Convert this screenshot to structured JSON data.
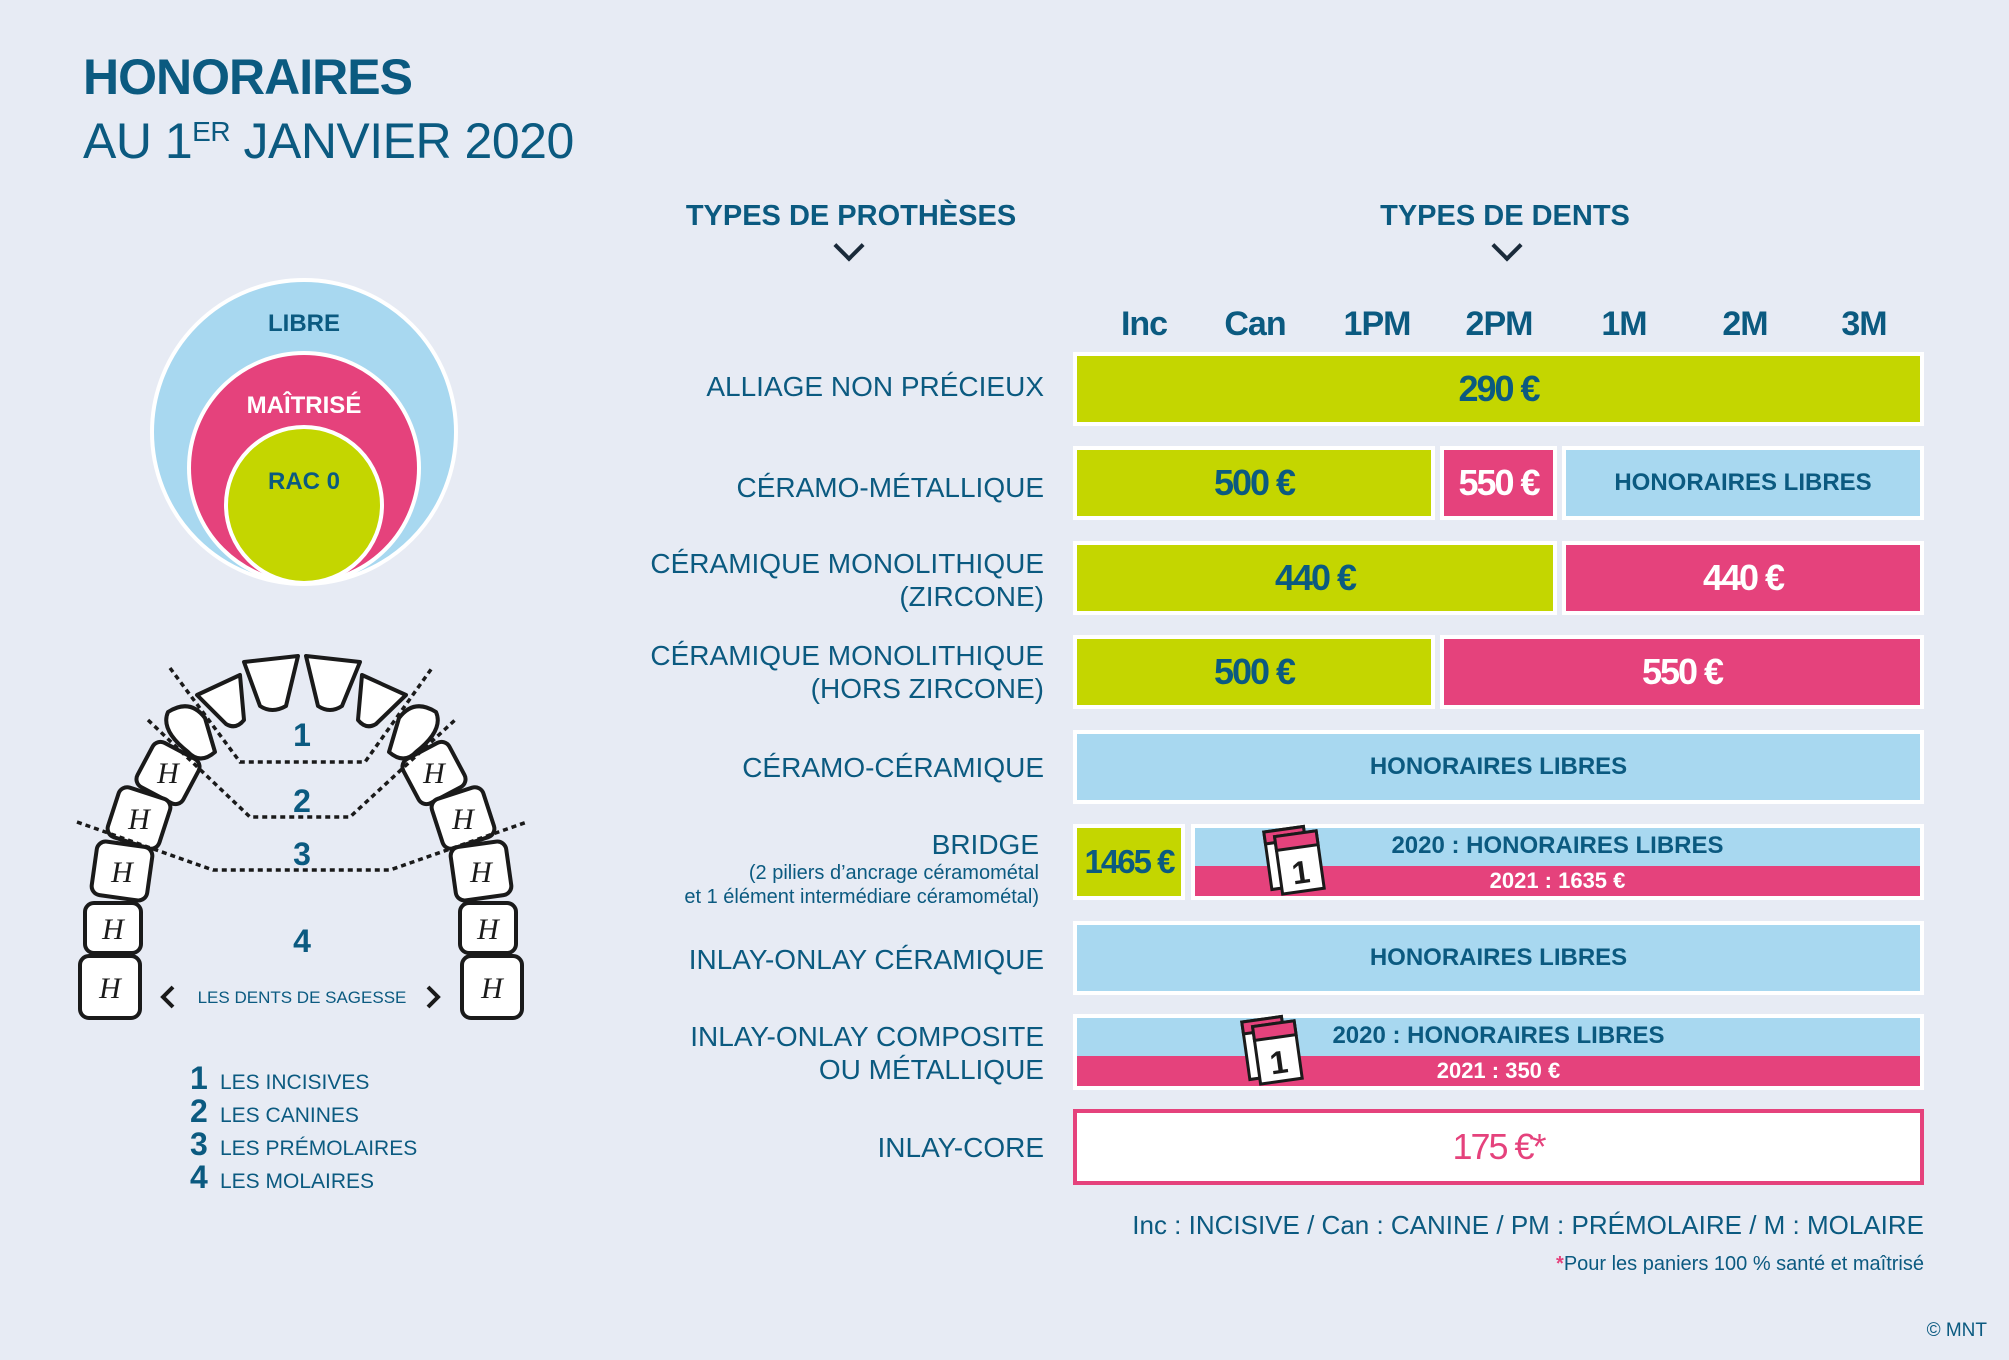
{
  "title": {
    "line1": "HONORAIRES",
    "line2_pre": "AU 1",
    "line2_sup": "ER",
    "line2_post": " JANVIER 2020"
  },
  "headers": {
    "protheses": "TYPES DE PROTHÈSES",
    "dents": "TYPES DE DENTS"
  },
  "columns": [
    "Inc",
    "Can",
    "1PM",
    "2PM",
    "1M",
    "2M",
    "3M"
  ],
  "circles": {
    "outer": "LIBRE",
    "middle": "MAÎTRISÉ",
    "inner": "RAC 0"
  },
  "colors": {
    "green": "#c4d600",
    "pink": "#e5427c",
    "blue": "#a8d8f0",
    "text": "#0b5a80",
    "background": "#e7ebf4"
  },
  "rows": [
    {
      "label": "ALLIAGE NON PRÉCIEUX",
      "cells": [
        "290 €"
      ]
    },
    {
      "label": "CÉRAMO-MÉTALLIQUE",
      "cells": [
        "500 €",
        "550 €",
        "HONORAIRES LIBRES"
      ]
    },
    {
      "label": "CÉRAMIQUE MONOLITHIQUE",
      "label2": "(ZIRCONE)",
      "cells": [
        "440 €",
        "440 €"
      ]
    },
    {
      "label": "CÉRAMIQUE MONOLITHIQUE",
      "label2": "(HORS ZIRCONE)",
      "cells": [
        "500 €",
        "550 €"
      ]
    },
    {
      "label": "CÉRAMO-CÉRAMIQUE",
      "cells": [
        "HONORAIRES LIBRES"
      ]
    },
    {
      "label": "BRIDGE",
      "sub1": "(2 piliers d’ancrage céramométal",
      "sub2": "et 1 élément intermédiare céramométal)",
      "cells": [
        "1465 €"
      ],
      "y2020": "2020 : HONORAIRES LIBRES",
      "y2021": "2021 : 1635 €",
      "calendar_number": "1"
    },
    {
      "label": "INLAY-ONLAY CÉRAMIQUE",
      "cells": [
        "HONORAIRES LIBRES"
      ]
    },
    {
      "label": "INLAY-ONLAY COMPOSITE",
      "label2": "OU MÉTALLIQUE",
      "y2020": "2020 : HONORAIRES LIBRES",
      "y2021": "2021 : 350 €",
      "calendar_number": "1"
    },
    {
      "label": "INLAY-CORE",
      "cells": [
        "175 €*"
      ]
    }
  ],
  "teeth": {
    "zones": [
      "1",
      "2",
      "3",
      "4"
    ],
    "sagesse": "LES DENTS DE SAGESSE"
  },
  "legend": [
    {
      "num": "1",
      "text": "LES INCISIVES"
    },
    {
      "num": "2",
      "text": "LES CANINES"
    },
    {
      "num": "3",
      "text": "LES PRÉMOLAIRES"
    },
    {
      "num": "4",
      "text": "LES MOLAIRES"
    }
  ],
  "abbrev": "Inc : INCISIVE / Can : CANINE / PM : PRÉMOLAIRE / M : MOLAIRE",
  "footnote": {
    "star": "*",
    "text": "Pour les paniers 100 % santé et maîtrisé"
  },
  "copyright": "© MNT"
}
